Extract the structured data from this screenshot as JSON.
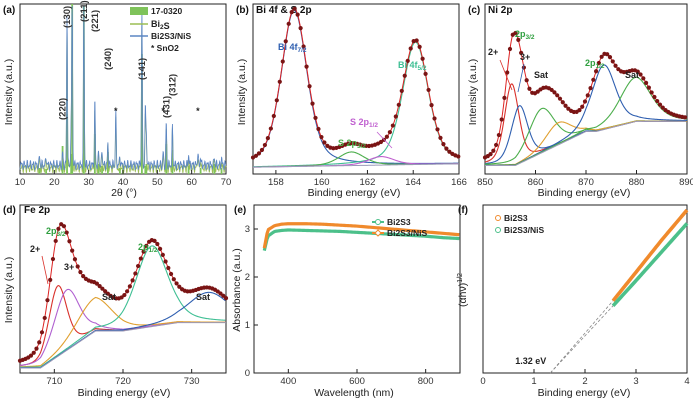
{
  "chart_data": [
    {
      "id": "a",
      "type": "line",
      "panel_label": "(a)",
      "xlabel": "2θ (°)",
      "ylabel": "Intensity (a.u.)",
      "xlim": [
        10,
        70
      ],
      "xticks": [
        "10",
        "20",
        "30",
        "40",
        "50",
        "60",
        "70"
      ],
      "legend": [
        "17-0320",
        "Bi2S3",
        "Bi2S3/NiS",
        "* SnO2"
      ],
      "reference_peaks_17_0320": [
        15.7,
        17.6,
        22.4,
        23.7,
        24.9,
        25.2,
        28.6,
        31.8,
        32.9,
        33.9,
        35.6,
        39.1,
        40.0,
        45.5,
        46.5,
        46.8,
        52.6,
        54.4,
        59.1,
        62.6,
        66.6,
        68.7
      ],
      "peak_labels": [
        {
          "hkl": "(220)",
          "x": 22.4
        },
        {
          "hkl": "(130)",
          "x": 23.7
        },
        {
          "hkl": "(211)",
          "x": 28.6
        },
        {
          "hkl": "(221)",
          "x": 31.8
        },
        {
          "hkl": "(240)",
          "x": 35.6
        },
        {
          "hkl": "(141)",
          "x": 45.5
        },
        {
          "hkl": "(431)",
          "x": 52.6
        },
        {
          "hkl": "(312)",
          "x": 54.4
        }
      ],
      "sno2_markers": [
        37.9,
        51.7,
        61.8
      ],
      "series": [
        {
          "name": "Bi2S3",
          "color": "#9bbd54",
          "offset": 0.0,
          "scale": 1.0
        },
        {
          "name": "Bi2S3/NiS",
          "color": "#5b86c4",
          "offset": 0.02,
          "scale": 1.05
        }
      ]
    },
    {
      "id": "b",
      "type": "line",
      "panel_label": "(b)",
      "title": "Bi 4f & S 2p",
      "xlabel": "Binding energy (eV)",
      "ylabel": "Intensity (a.u.)",
      "xlim": [
        157,
        166
      ],
      "xticks": [
        "158",
        "160",
        "162",
        "164",
        "166"
      ],
      "peaks": [
        {
          "center": 158.8,
          "height": 0.92,
          "width": 0.55,
          "color": "#2f5fb0"
        },
        {
          "center": 164.1,
          "height": 0.72,
          "width": 0.55,
          "color": "#3fbf94"
        },
        {
          "center": 161.3,
          "height": 0.08,
          "width": 0.55,
          "color": "#4cae4c"
        },
        {
          "center": 162.6,
          "height": 0.05,
          "width": 0.55,
          "color": "#c060d0"
        }
      ],
      "annotations": [
        {
          "text": "Bi 4f7/2",
          "color": "#2f5fb0"
        },
        {
          "text": "Bi 4f5/2",
          "color": "#3fbf94"
        },
        {
          "text": "S 2p3/2",
          "color": "#4cae4c"
        },
        {
          "text": "S 2p1/2",
          "color": "#c060d0"
        }
      ]
    },
    {
      "id": "c",
      "type": "line",
      "panel_label": "(c)",
      "title": "Ni 2p",
      "xlabel": "Binding energy (eV)",
      "ylabel": "Intensity (a.u.)",
      "xlim": [
        850,
        890
      ],
      "xticks": [
        "850",
        "860",
        "870",
        "880",
        "890"
      ],
      "peaks": [
        {
          "center": 855.3,
          "height": 0.48,
          "width": 1.4,
          "color": "#d9312b"
        },
        {
          "center": 856.8,
          "height": 0.34,
          "width": 1.6,
          "color": "#2f5fb0"
        },
        {
          "center": 861.2,
          "height": 0.26,
          "width": 2.5,
          "color": "#4cae4c"
        },
        {
          "center": 864.5,
          "height": 0.13,
          "width": 2.5,
          "color": "#e0a030"
        },
        {
          "center": 873.5,
          "height": 0.38,
          "width": 2.3,
          "color": "#2f5fb0"
        },
        {
          "center": 879.8,
          "height": 0.26,
          "width": 3.0,
          "color": "#4cae4c"
        }
      ],
      "annotations": [
        {
          "text": "2p3/2",
          "color": "#2e9e3e"
        },
        {
          "text": "2+",
          "color": "#d9312b"
        },
        {
          "text": "3+",
          "color": "#2f5fb0"
        },
        {
          "text": "Sat",
          "color": "#222"
        },
        {
          "text": "2p1/2",
          "color": "#2e9e3e"
        },
        {
          "text": "Sat",
          "color": "#222"
        }
      ]
    },
    {
      "id": "d",
      "type": "line",
      "panel_label": "(d)",
      "title": "Fe 2p",
      "xlabel": "Binding energy (eV)",
      "ylabel": "Intensity (a.u.)",
      "xlim": [
        705,
        735
      ],
      "xticks": [
        "710",
        "720",
        "730"
      ],
      "peaks": [
        {
          "center": 710.5,
          "height": 0.42,
          "width": 1.3,
          "color": "#d9312b"
        },
        {
          "center": 711.8,
          "height": 0.36,
          "width": 1.8,
          "color": "#b060d0"
        },
        {
          "center": 715.8,
          "height": 0.2,
          "width": 2.6,
          "color": "#e0a030"
        },
        {
          "center": 724.2,
          "height": 0.48,
          "width": 2.3,
          "color": "#3fbf94"
        },
        {
          "center": 732.5,
          "height": 0.18,
          "width": 3.0,
          "color": "#2f5fb0"
        }
      ],
      "annotations": [
        {
          "text": "2p3/2",
          "color": "#2e9e3e"
        },
        {
          "text": "2+",
          "color": "#d9312b"
        },
        {
          "text": "3+",
          "color": "#b060d0"
        },
        {
          "text": "Sat",
          "color": "#222"
        },
        {
          "text": "2p1/2",
          "color": "#2e9e3e"
        },
        {
          "text": "Sat",
          "color": "#222"
        }
      ]
    },
    {
      "id": "e",
      "type": "line",
      "panel_label": "(e)",
      "xlabel": "Wavelength (nm)",
      "ylabel": "Absorbance (a.u.)",
      "xlim": [
        300,
        900
      ],
      "ylim": [
        0,
        3.5
      ],
      "xticks": [
        "400",
        "600",
        "800"
      ],
      "yticks": [
        "0",
        "1",
        "2",
        "3"
      ],
      "legend_position": "top-right",
      "series": [
        {
          "name": "Bi2S3",
          "color": "#4cc08a",
          "x": [
            330,
            340,
            360,
            380,
            400,
            450,
            500,
            550,
            600,
            650,
            700,
            750,
            800,
            850,
            900
          ],
          "y": [
            2.55,
            2.85,
            2.95,
            2.97,
            2.98,
            2.97,
            2.96,
            2.95,
            2.93,
            2.91,
            2.89,
            2.87,
            2.85,
            2.82,
            2.8
          ]
        },
        {
          "name": "Bi2S3/NiS",
          "color": "#f08a2c",
          "x": [
            330,
            340,
            360,
            380,
            400,
            450,
            500,
            550,
            600,
            650,
            700,
            750,
            800,
            850,
            900
          ],
          "y": [
            2.6,
            2.98,
            3.07,
            3.1,
            3.11,
            3.11,
            3.1,
            3.08,
            3.06,
            3.03,
            3.0,
            2.97,
            2.94,
            2.91,
            2.88
          ]
        }
      ]
    },
    {
      "id": "f",
      "type": "line",
      "panel_label": "(f)",
      "xlabel": "Binding energy (eV)",
      "ylabel": "(αhν)1/2",
      "xlim": [
        0,
        4
      ],
      "xticks": [
        "0",
        "1",
        "2",
        "3",
        "4"
      ],
      "legend_position": "top-left",
      "intercept_label": "1.32 eV",
      "intercept_x": 1.32,
      "series": [
        {
          "name": "Bi2S3",
          "color": "#f08a2c",
          "x": [
            2.55,
            3.0,
            3.5,
            4.0
          ],
          "y": [
            0.43,
            0.6,
            0.79,
            0.97
          ]
        },
        {
          "name": "Bi2S3/NiS",
          "color": "#4cc08a",
          "x": [
            2.55,
            3.0,
            3.5,
            4.0
          ],
          "y": [
            0.4,
            0.55,
            0.72,
            0.89
          ]
        }
      ]
    }
  ]
}
